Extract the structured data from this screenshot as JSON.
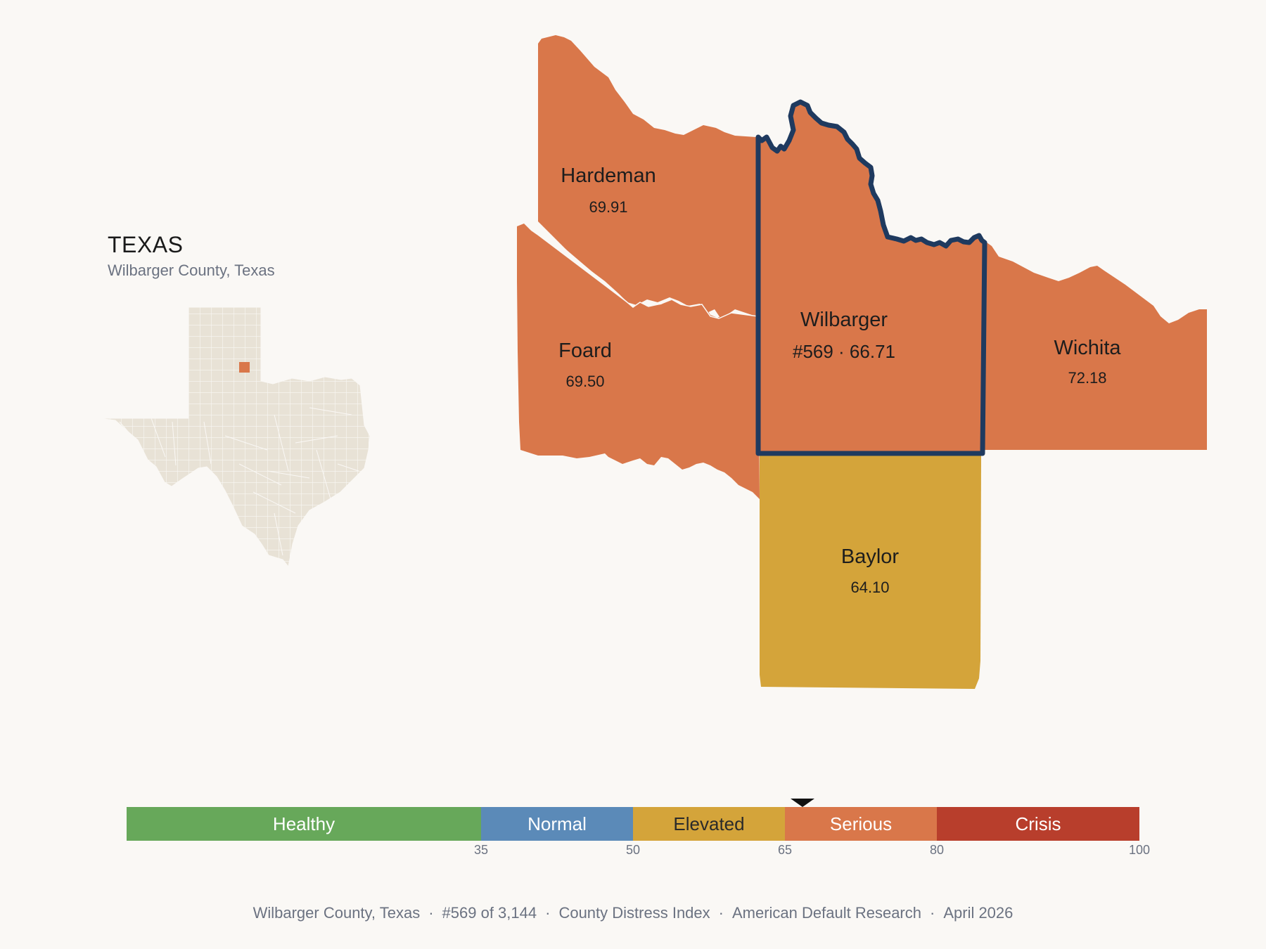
{
  "inset": {
    "state_name": "TEXAS",
    "county_label": "Wilbarger County, Texas"
  },
  "counties": {
    "hardeman": {
      "name": "Hardeman",
      "value": "69.91",
      "color": "#d9774a"
    },
    "foard": {
      "name": "Foard",
      "value": "69.50",
      "color": "#d9774a"
    },
    "wilbarger": {
      "name": "Wilbarger",
      "value": "#569 · 66.71",
      "color": "#d9774a",
      "outline": "#1f3a5f"
    },
    "wichita": {
      "name": "Wichita",
      "value": "72.18",
      "color": "#d9774a"
    },
    "baylor": {
      "name": "Baylor",
      "value": "64.10",
      "color": "#d4a43a"
    }
  },
  "legend": {
    "marker_value": 66.71,
    "segments": [
      {
        "label": "Healthy",
        "from": 0,
        "to": 35,
        "color": "#67a85a"
      },
      {
        "label": "Normal",
        "from": 35,
        "to": 50,
        "color": "#5b8ab8"
      },
      {
        "label": "Elevated",
        "from": 50,
        "to": 65,
        "color": "#d4a43a"
      },
      {
        "label": "Serious",
        "from": 65,
        "to": 80,
        "color": "#d9774a"
      },
      {
        "label": "Crisis",
        "from": 80,
        "to": 100,
        "color": "#b83e2c"
      }
    ],
    "ticks": [
      "35",
      "50",
      "65",
      "80",
      "100"
    ]
  },
  "footer": {
    "county": "Wilbarger County, Texas",
    "rank": "#569 of 3,144",
    "index": "County Distress Index",
    "publisher": "American Default Research",
    "date": "April 2026",
    "separator": "·"
  }
}
